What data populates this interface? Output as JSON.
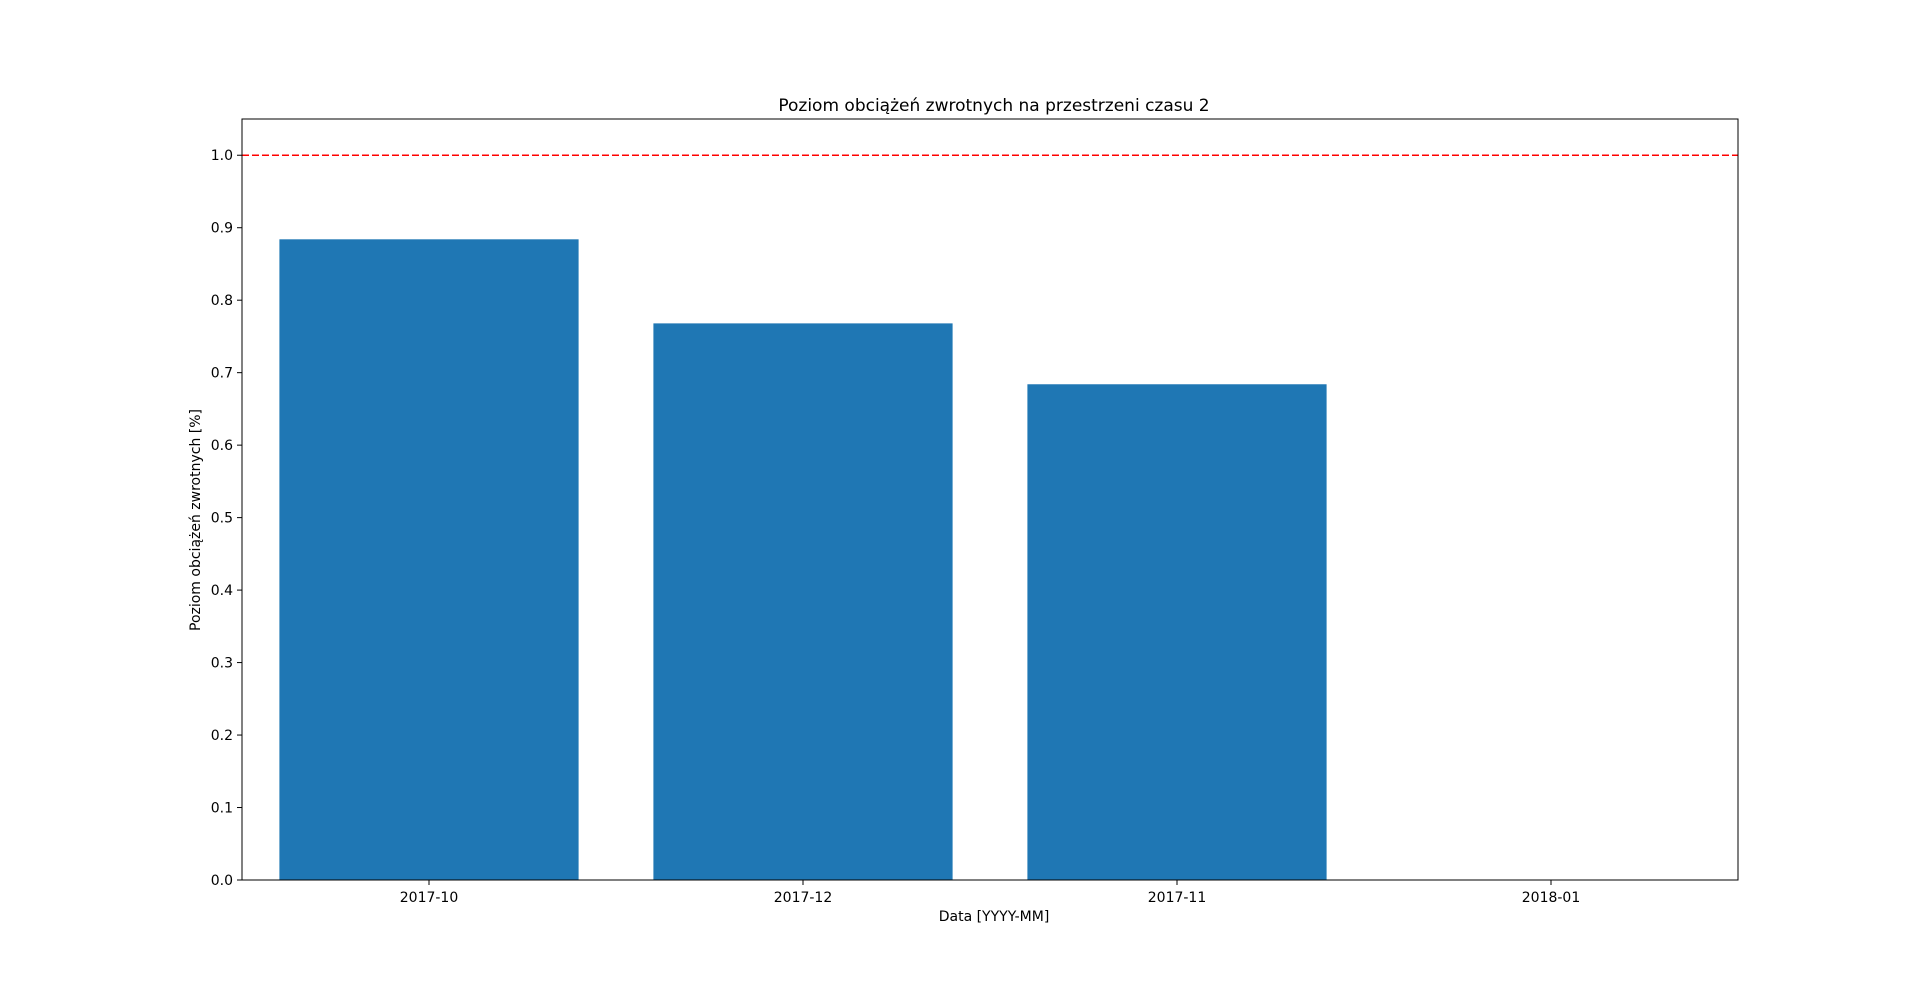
{
  "chart_data": {
    "type": "bar",
    "title": "Poziom obciążeń zwrotnych na przestrzeni czasu 2",
    "xlabel": "Data [YYYY-MM]",
    "ylabel": "Poziom obciążeń zwrotnych [%]",
    "categories": [
      "2017-10",
      "2017-12",
      "2017-11",
      "2018-01"
    ],
    "values": [
      0.884,
      0.768,
      0.684,
      0.0
    ],
    "ylim": [
      0,
      1.05
    ],
    "yticks": [
      0.0,
      0.1,
      0.2,
      0.3,
      0.4,
      0.5,
      0.6,
      0.7,
      0.8,
      0.9,
      1.0
    ],
    "ytick_labels": [
      "0.0",
      "0.1",
      "0.2",
      "0.3",
      "0.4",
      "0.5",
      "0.6",
      "0.7",
      "0.8",
      "0.9",
      "1.0"
    ],
    "threshold": 1.0,
    "threshold_style": "dashed",
    "threshold_color": "#ff0000",
    "bar_color": "#1f77b4",
    "grid": false,
    "legend": "none"
  }
}
